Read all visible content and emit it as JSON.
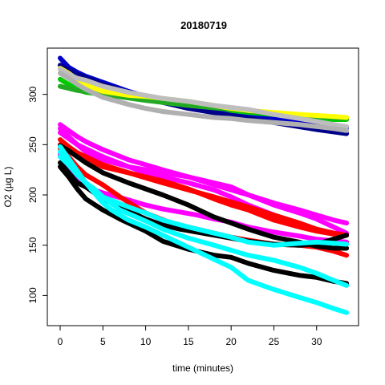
{
  "chart_data": {
    "type": "line",
    "title": "20180719",
    "xlabel": "time (minutes)",
    "ylabel": "O2 (µg L)",
    "xlim": [
      -1.5,
      34.9
    ],
    "ylim": [
      70,
      346
    ],
    "x_ticks": [
      0,
      5,
      10,
      15,
      20,
      25,
      30
    ],
    "y_ticks": [
      100,
      150,
      200,
      250,
      300
    ],
    "grid": false,
    "legend": "none",
    "series": [
      {
        "color": "#0000CD",
        "x": [
          0,
          1,
          2,
          3,
          5,
          8,
          10,
          12,
          15,
          18,
          20,
          22,
          25,
          28,
          30,
          32,
          33.5
        ],
        "y": [
          336,
          327,
          322,
          318,
          312,
          303,
          298,
          294,
          289,
          285,
          282,
          280,
          276,
          272,
          270,
          268,
          267
        ]
      },
      {
        "color": "#00008B",
        "x": [
          0,
          2,
          5,
          10,
          15,
          20,
          25,
          30,
          33.5
        ],
        "y": [
          329,
          320,
          310,
          296,
          286,
          279,
          272,
          265,
          261
        ]
      },
      {
        "color": "#00CC00",
        "x": [
          0,
          1,
          2,
          3,
          5,
          8,
          10,
          12,
          15,
          18,
          20,
          22,
          25,
          28,
          30,
          32,
          33.5
        ],
        "y": [
          315,
          310,
          305,
          302,
          300,
          298,
          297,
          296,
          292,
          288,
          284,
          282,
          280,
          278,
          276,
          275,
          275
        ]
      },
      {
        "color": "#22AA22",
        "x": [
          0,
          2,
          5,
          10,
          15,
          20,
          25,
          30,
          33.5
        ],
        "y": [
          308,
          304,
          300,
          294,
          289,
          285,
          281,
          278,
          276
        ]
      },
      {
        "color": "#FFFF00",
        "x": [
          0,
          1,
          2,
          3,
          4,
          5,
          8,
          10,
          12,
          15,
          18,
          20,
          22,
          25,
          28,
          30,
          32,
          33.5
        ],
        "y": [
          326,
          321,
          315,
          310,
          306,
          303,
          299,
          298,
          296,
          293,
          289,
          286,
          284,
          282,
          280,
          279,
          278,
          277
        ]
      },
      {
        "color": "#BEBEBE",
        "x": [
          0,
          1,
          2,
          3,
          5,
          8,
          10,
          12,
          15,
          18,
          20,
          22,
          25,
          28,
          30,
          32,
          33.5
        ],
        "y": [
          325,
          320,
          316,
          314,
          308,
          302,
          299,
          296,
          293,
          289,
          287,
          285,
          280,
          276,
          273,
          270,
          268
        ]
      },
      {
        "color": "#B0B0B0",
        "x": [
          0,
          1,
          2,
          3,
          5,
          8,
          10,
          12,
          15,
          18,
          20,
          22,
          25,
          28,
          30,
          32,
          33.5
        ],
        "y": [
          321,
          316,
          310,
          305,
          297,
          290,
          286,
          283,
          280,
          277,
          276,
          274,
          272,
          270,
          268,
          266,
          264
        ]
      },
      {
        "color": "#FF00FF",
        "x": [
          0,
          1,
          2,
          3,
          5,
          8,
          10,
          12,
          15,
          18,
          20,
          22,
          25,
          28,
          30,
          32,
          33.5
        ],
        "y": [
          270,
          264,
          258,
          253,
          245,
          235,
          230,
          225,
          218,
          210,
          205,
          200,
          192,
          185,
          180,
          175,
          172
        ]
      },
      {
        "color": "#FF00FF",
        "x": [
          0,
          1,
          2,
          3,
          5,
          8,
          10,
          12,
          15,
          18,
          20,
          22,
          25,
          28,
          30,
          32,
          33.5
        ],
        "y": [
          266,
          258,
          250,
          243,
          235,
          228,
          225,
          222,
          218,
          212,
          208,
          200,
          190,
          182,
          176,
          168,
          162
        ]
      },
      {
        "color": "#FF00FF",
        "x": [
          0,
          2,
          5,
          8,
          10,
          12,
          15,
          18,
          20,
          22,
          25,
          28,
          30,
          33.5
        ],
        "y": [
          262,
          250,
          238,
          228,
          222,
          218,
          212,
          205,
          198,
          190,
          180,
          170,
          165,
          160
        ]
      },
      {
        "color": "#FF00FF",
        "x": [
          0,
          1,
          2,
          3,
          4,
          5,
          8,
          10,
          12,
          14,
          16,
          18,
          20,
          22,
          25,
          28,
          30,
          33.5
        ],
        "y": [
          240,
          228,
          218,
          210,
          205,
          202,
          195,
          190,
          186,
          183,
          180,
          176,
          173,
          168,
          163,
          159,
          156,
          153
        ]
      },
      {
        "color": "#FF0000",
        "x": [
          0,
          1,
          2,
          3,
          5,
          8,
          10,
          12,
          15,
          18,
          20,
          22,
          25,
          28,
          30,
          32,
          33.5
        ],
        "y": [
          255,
          248,
          242,
          238,
          230,
          222,
          218,
          214,
          206,
          196,
          190,
          185,
          175,
          168,
          164,
          161,
          160
        ]
      },
      {
        "color": "#FF0000",
        "x": [
          0,
          1,
          2,
          3,
          5,
          8,
          10,
          12,
          15,
          18,
          20,
          22,
          25,
          28,
          30,
          32,
          33.5
        ],
        "y": [
          250,
          244,
          239,
          236,
          228,
          222,
          217,
          212,
          205,
          198,
          193,
          188,
          180,
          172,
          166,
          162,
          160
        ]
      },
      {
        "color": "#FF0000",
        "x": [
          0,
          1,
          2,
          3,
          5,
          7,
          10,
          13,
          15,
          18,
          20,
          22,
          25,
          28,
          30,
          32,
          33.5
        ],
        "y": [
          246,
          238,
          228,
          220,
          210,
          198,
          182,
          172,
          168,
          162,
          158,
          155,
          151,
          150,
          148,
          144,
          140
        ]
      },
      {
        "color": "#000000",
        "x": [
          0,
          1,
          2,
          3,
          5,
          8,
          10,
          12,
          15,
          18,
          20,
          22,
          25,
          28,
          30,
          32,
          33.5
        ],
        "y": [
          249,
          244,
          238,
          232,
          222,
          212,
          206,
          200,
          190,
          178,
          172,
          166,
          158,
          153,
          149,
          147,
          147
        ]
      },
      {
        "color": "#000000",
        "x": [
          0,
          1,
          2,
          3,
          4,
          5,
          6,
          8,
          10,
          12,
          14,
          16,
          18,
          20,
          22,
          25,
          28,
          30,
          33.5
        ],
        "y": [
          232,
          222,
          212,
          208,
          202,
          197,
          192,
          184,
          176,
          170,
          166,
          163,
          160,
          157,
          154,
          151,
          150,
          151,
          160
        ]
      },
      {
        "color": "#000000",
        "x": [
          0,
          1,
          2,
          3,
          5,
          7,
          10,
          12,
          15,
          18,
          20,
          22,
          25,
          28,
          30,
          32,
          33.5
        ],
        "y": [
          228,
          218,
          206,
          196,
          185,
          176,
          164,
          154,
          146,
          140,
          138,
          132,
          125,
          120,
          118,
          114,
          112
        ]
      },
      {
        "color": "#00FFFF",
        "x": [
          0,
          1,
          2,
          3,
          4,
          5,
          6,
          8,
          10,
          12,
          15,
          18,
          20,
          22,
          25,
          28,
          30,
          32,
          33.5
        ],
        "y": [
          248,
          236,
          224,
          212,
          202,
          192,
          185,
          175,
          168,
          160,
          148,
          136,
          128,
          115,
          106,
          98,
          93,
          87,
          83
        ]
      },
      {
        "color": "#00FFFF",
        "x": [
          0,
          1,
          2,
          3,
          5,
          7,
          10,
          12,
          15,
          18,
          20,
          22,
          25,
          28,
          30,
          32,
          33.5
        ],
        "y": [
          243,
          230,
          220,
          212,
          198,
          185,
          174,
          166,
          157,
          150,
          145,
          140,
          135,
          128,
          122,
          115,
          110
        ]
      },
      {
        "color": "#00FFFF",
        "x": [
          0,
          1,
          2,
          3,
          4,
          5,
          8,
          10,
          12,
          15,
          18,
          20,
          22,
          25,
          28,
          30,
          32,
          33.5
        ],
        "y": [
          238,
          230,
          222,
          212,
          206,
          198,
          188,
          182,
          175,
          168,
          162,
          158,
          153,
          150,
          152,
          153,
          152,
          151
        ]
      }
    ]
  }
}
